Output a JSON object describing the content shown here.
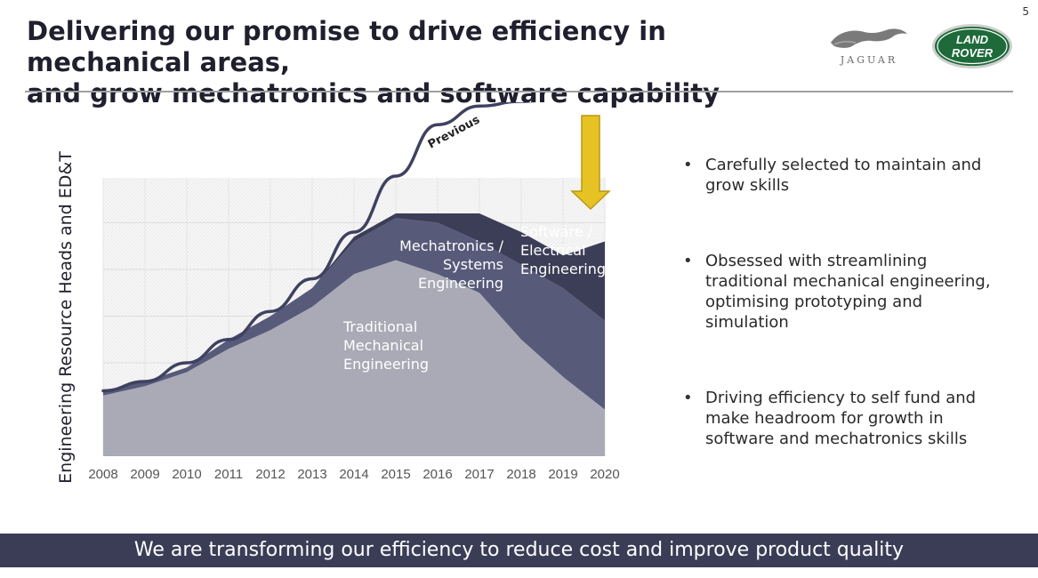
{
  "page_number": "5",
  "title": {
    "line1": "Delivering our promise to drive efficiency in mechanical areas,",
    "line2": "and grow mechatronics and software capability"
  },
  "logos": {
    "jaguar_wordmark": "JAGUAR",
    "landrover_line1": "LAND",
    "landrover_line2": "ROVER"
  },
  "colors": {
    "traditional": "#a9aab6",
    "mechatronics": "#575a79",
    "software": "#3c3e57",
    "previous_line": "#3f4160",
    "arrow": "#e6c224",
    "footer_bg": "#3b3d57"
  },
  "chart_data": {
    "type": "area",
    "stacked": true,
    "ylabel": "Engineering Resource Heads and ED&T",
    "xlabel": "",
    "categories": [
      "2008",
      "2009",
      "2010",
      "2011",
      "2012",
      "2013",
      "2014",
      "2015",
      "2016",
      "2017",
      "2018",
      "2019",
      "2020"
    ],
    "ylim": [
      0,
      6
    ],
    "grid": true,
    "series": [
      {
        "name": "Traditional Mechanical Engineering",
        "label_lines": [
          "Traditional",
          "Mechanical",
          "Engineering"
        ],
        "values": [
          1.3,
          1.5,
          1.8,
          2.3,
          2.7,
          3.2,
          3.9,
          4.2,
          3.9,
          3.5,
          2.5,
          1.7,
          1.0
        ]
      },
      {
        "name": "Mechatronics / Systems Engineering",
        "label_lines": [
          "Mechatronics /",
          "Systems",
          "Engineering"
        ],
        "values": [
          0.1,
          0.1,
          0.1,
          0.2,
          0.3,
          0.4,
          0.7,
          0.9,
          1.1,
          1.1,
          1.6,
          1.9,
          1.9
        ]
      },
      {
        "name": "Software / Electrical Engineering",
        "label_lines": [
          "Software /",
          "Electrical",
          "Engineering"
        ],
        "values": [
          0.0,
          0.0,
          0.0,
          0.0,
          0.0,
          0.0,
          0.1,
          0.1,
          0.2,
          0.6,
          0.7,
          0.7,
          1.7
        ]
      }
    ],
    "previous": {
      "name": "Previous",
      "values": [
        1.4,
        1.6,
        2.0,
        2.5,
        3.1,
        3.8,
        4.8,
        6.0,
        7.1,
        7.5,
        7.6,
        7.7,
        7.7
      ]
    },
    "annotation": "downward arrow at 2020 indicating reduction from previous plan"
  },
  "bullets": [
    "Carefully selected to maintain and grow skills",
    "Obsessed with streamlining traditional mechanical engineering, optimising prototyping and simulation",
    "Driving efficiency to self fund and make headroom for growth in software and mechatronics skills"
  ],
  "footer": "We are transforming our efficiency to reduce cost and improve product quality"
}
